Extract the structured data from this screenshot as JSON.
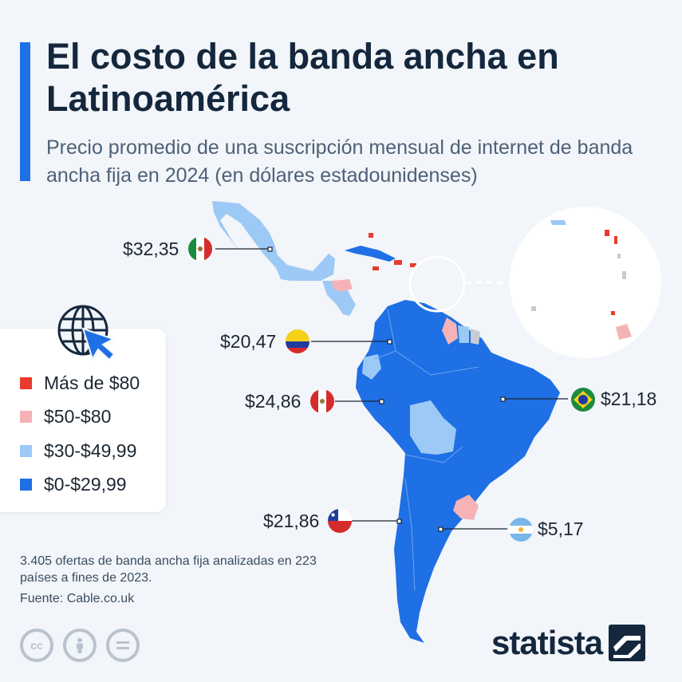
{
  "header": {
    "title": "El costo de la banda ancha en Latinoamérica",
    "subtitle": "Precio promedio de una suscripción mensual de internet de banda ancha fija en 2024 (en dólares estadounidenses)"
  },
  "legend": {
    "items": [
      {
        "label": "Más de $80",
        "color": "#e83a2e"
      },
      {
        "label": "$50-$80",
        "color": "#f5b3b8"
      },
      {
        "label": "$30-$49,99",
        "color": "#9cc9f5"
      },
      {
        "label": "$0-$29,99",
        "color": "#1f6fe5"
      }
    ]
  },
  "countries": [
    {
      "name": "México",
      "price": "$32,35",
      "flag": "mexico-flag-icon"
    },
    {
      "name": "Colombia",
      "price": "$20,47",
      "flag": "colombia-flag-icon"
    },
    {
      "name": "Perú",
      "price": "$24,86",
      "flag": "peru-flag-icon"
    },
    {
      "name": "Brasil",
      "price": "$21,18",
      "flag": "brazil-flag-icon"
    },
    {
      "name": "Chile",
      "price": "$21,86",
      "flag": "chile-flag-icon"
    },
    {
      "name": "Argentina",
      "price": "$5,17",
      "flag": "argentina-flag-icon"
    }
  ],
  "footer": {
    "note": "3.405 ofertas de banda ancha fija analizadas en 223 países a fines de 2023.",
    "source": "Fuente: Cable.co.uk",
    "brand": "statista",
    "license_icons": [
      "cc-icon",
      "attribution-icon",
      "no-derivatives-icon"
    ]
  },
  "colors": {
    "accent": "#1f6fe5",
    "title": "#14273d"
  }
}
